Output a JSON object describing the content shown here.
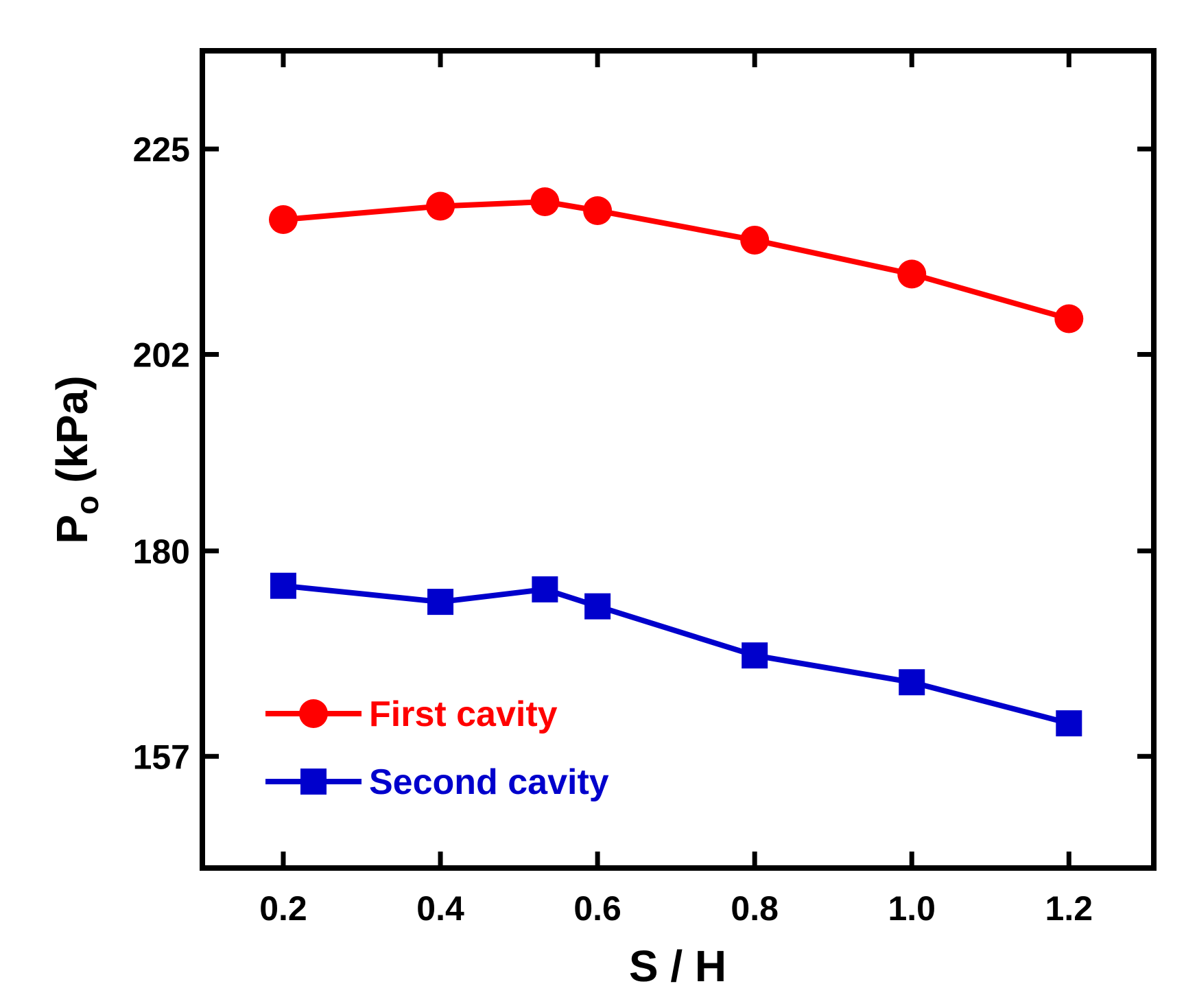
{
  "chart_data": {
    "type": "line",
    "title": "",
    "xlabel": "S / H",
    "ylabel": {
      "main": "P",
      "sub": "o",
      "unit": "(kPa)"
    },
    "xlim": [
      0.097,
      1.308
    ],
    "ylim": [
      144.5,
      236
    ],
    "xticks": [
      {
        "value": 0.2,
        "label": "0.2"
      },
      {
        "value": 0.4,
        "label": "0.4"
      },
      {
        "value": 0.6,
        "label": "0.6"
      },
      {
        "value": 0.8,
        "label": "0.8"
      },
      {
        "value": 1.0,
        "label": "1.0"
      },
      {
        "value": 1.2,
        "label": "1.2"
      }
    ],
    "yticks": [
      {
        "value": 157,
        "label": "157"
      },
      {
        "value": 180,
        "label": "180"
      },
      {
        "value": 202,
        "label": "202"
      },
      {
        "value": 225,
        "label": "225"
      }
    ],
    "legend_position": "bottom-left",
    "series": [
      {
        "name": "First cavity",
        "color": "#ff0000",
        "marker": "circle",
        "x": [
          0.2,
          0.4,
          0.533,
          0.6,
          0.8,
          1.0,
          1.2
        ],
        "y": [
          217.1,
          218.6,
          219.1,
          218.1,
          214.8,
          211.0,
          206.0
        ]
      },
      {
        "name": "Second cavity",
        "color": "#0000cc",
        "marker": "square",
        "x": [
          0.2,
          0.4,
          0.533,
          0.6,
          0.8,
          1.0,
          1.2
        ],
        "y": [
          176.1,
          174.3,
          175.7,
          173.8,
          168.3,
          165.3,
          160.7
        ]
      }
    ]
  }
}
